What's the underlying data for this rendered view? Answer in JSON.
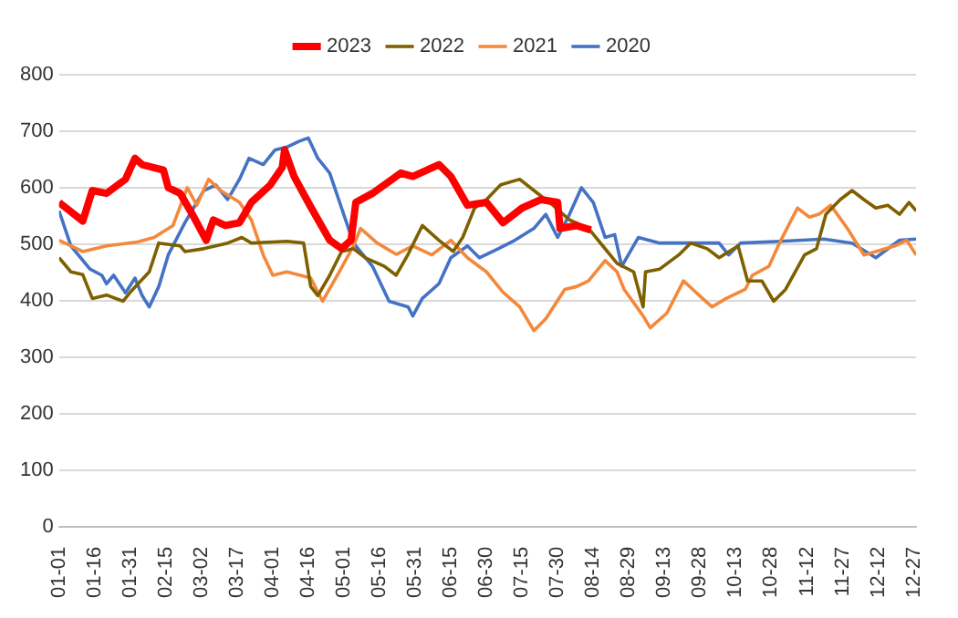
{
  "chart_data": {
    "type": "line",
    "xlim": [
      "--01-01",
      "--12-28"
    ],
    "xticks": [
      {
        "value": "--01-01",
        "label": "01-01"
      },
      {
        "value": "--01-16",
        "label": "01-16"
      },
      {
        "value": "--01-31",
        "label": "01-31"
      },
      {
        "value": "--02-15",
        "label": "02-15"
      },
      {
        "value": "--03-02",
        "label": "03-02"
      },
      {
        "value": "--03-17",
        "label": "03-17"
      },
      {
        "value": "--04-01",
        "label": "04-01"
      },
      {
        "value": "--04-16",
        "label": "04-16"
      },
      {
        "value": "--05-01",
        "label": "05-01"
      },
      {
        "value": "--05-16",
        "label": "05-16"
      },
      {
        "value": "--05-31",
        "label": "05-31"
      },
      {
        "value": "--06-15",
        "label": "06-15"
      },
      {
        "value": "--06-30",
        "label": "06-30"
      },
      {
        "value": "--07-15",
        "label": "07-15"
      },
      {
        "value": "--07-30",
        "label": "07-30"
      },
      {
        "value": "--08-14",
        "label": "08-14"
      },
      {
        "value": "--08-29",
        "label": "08-29"
      },
      {
        "value": "--09-13",
        "label": "09-13"
      },
      {
        "value": "--09-28",
        "label": "09-28"
      },
      {
        "value": "--10-13",
        "label": "10-13"
      },
      {
        "value": "--10-28",
        "label": "10-28"
      },
      {
        "value": "--11-12",
        "label": "11-12"
      },
      {
        "value": "--11-27",
        "label": "11-27"
      },
      {
        "value": "--12-12",
        "label": "12-12"
      },
      {
        "value": "--12-27",
        "label": "12-27"
      }
    ],
    "ylim": [
      0,
      800
    ],
    "yticks": [
      0,
      100,
      200,
      300,
      400,
      500,
      600,
      700,
      800
    ],
    "grid": "y",
    "legend": "top",
    "marker": "none",
    "line_style": "solid",
    "series": [
      {
        "name": "2023",
        "color": "#ff0000",
        "x": [
          "--01-01",
          "--01-11",
          "--01-15",
          "--01-21",
          "--01-29",
          "--02-02",
          "--02-05",
          "--02-14",
          "--02-16",
          "--02-21",
          "--02-26",
          "--03-04",
          "--03-07",
          "--03-12",
          "--03-18",
          "--03-23",
          "--03-31",
          "--04-05",
          "--04-06",
          "--04-10",
          "--04-17",
          "--04-25",
          "--04-30",
          "--05-04",
          "--05-06",
          "--05-13",
          "--05-25",
          "--05-30",
          "--06-10",
          "--06-15",
          "--06-22",
          "--06-30",
          "--07-07",
          "--07-15",
          "--07-23",
          "--07-30",
          "--07-31",
          "--08-07",
          "--08-13"
        ],
        "values": [
          574,
          541,
          595,
          590,
          615,
          652,
          641,
          631,
          600,
          590,
          554,
          507,
          543,
          533,
          538,
          574,
          605,
          636,
          667,
          620,
          566,
          507,
          492,
          507,
          574,
          590,
          626,
          620,
          641,
          620,
          569,
          574,
          538,
          564,
          579,
          574,
          528,
          533,
          525
        ]
      },
      {
        "name": "2022",
        "color": "#7f6000",
        "x": [
          "--01-01",
          "--01-06",
          "--01-11",
          "--01-15",
          "--01-21",
          "--01-28",
          "--01-31",
          "--02-08",
          "--02-12",
          "--02-21",
          "--02-23",
          "--03-03",
          "--03-13",
          "--03-19",
          "--03-23",
          "--04-07",
          "--04-14",
          "--04-17",
          "--04-20",
          "--04-25",
          "--04-30",
          "--05-05",
          "--05-10",
          "--05-18",
          "--05-23",
          "--05-28",
          "--06-03",
          "--06-10",
          "--06-16",
          "--06-20",
          "--06-25",
          "--06-30",
          "--07-06",
          "--07-14",
          "--07-20",
          "--07-28",
          "--08-04",
          "--08-12",
          "--08-18",
          "--08-24",
          "--08-31",
          "--09-04",
          "--09-05",
          "--09-11",
          "--09-19",
          "--09-24",
          "--10-01",
          "--10-06",
          "--10-14",
          "--10-18",
          "--10-24",
          "--10-29",
          "--11-03",
          "--11-11",
          "--11-16",
          "--11-20",
          "--11-26",
          "--12-01",
          "--12-06",
          "--12-11",
          "--12-16",
          "--12-21",
          "--12-25",
          "--12-28"
        ],
        "values": [
          476,
          451,
          446,
          404,
          410,
          399,
          415,
          451,
          502,
          497,
          487,
          492,
          502,
          512,
          502,
          505,
          502,
          425,
          409,
          445,
          487,
          492,
          476,
          461,
          445,
          482,
          533,
          507,
          487,
          512,
          564,
          579,
          605,
          615,
          595,
          569,
          543,
          528,
          497,
          466,
          451,
          389,
          451,
          456,
          481,
          502,
          492,
          476,
          497,
          435,
          435,
          399,
          420,
          481,
          492,
          553,
          579,
          595,
          579,
          564,
          569,
          553,
          574,
          559
        ]
      },
      {
        "name": "2021",
        "color": "#f4883b",
        "x": [
          "--01-01",
          "--01-11",
          "--01-21",
          "--02-03",
          "--02-10",
          "--02-18",
          "--02-24",
          "--02-28",
          "--03-05",
          "--03-10",
          "--03-18",
          "--03-23",
          "--03-28",
          "--04-01",
          "--04-07",
          "--04-17",
          "--04-22",
          "--04-29",
          "--05-05",
          "--05-08",
          "--05-15",
          "--05-23",
          "--05-30",
          "--06-07",
          "--06-15",
          "--06-22",
          "--06-30",
          "--07-07",
          "--07-14",
          "--07-20",
          "--07-25",
          "--08-02",
          "--08-07",
          "--08-12",
          "--08-19",
          "--08-24",
          "--08-27",
          "--09-04",
          "--09-07",
          "--09-14",
          "--09-21",
          "--09-29",
          "--10-03",
          "--10-09",
          "--10-17",
          "--10-20",
          "--10-27",
          "--11-01",
          "--11-08",
          "--11-13",
          "--11-17",
          "--11-22",
          "--11-29",
          "--12-06",
          "--12-11",
          "--12-19",
          "--12-24",
          "--12-28"
        ],
        "values": [
          507,
          487,
          497,
          504,
          512,
          533,
          600,
          569,
          615,
          595,
          574,
          543,
          481,
          445,
          451,
          440,
          399,
          451,
          497,
          528,
          502,
          482,
          497,
          481,
          507,
          476,
          451,
          415,
          389,
          347,
          368,
          420,
          425,
          435,
          471,
          451,
          420,
          373,
          352,
          378,
          435,
          404,
          389,
          404,
          420,
          445,
          461,
          507,
          564,
          548,
          553,
          569,
          528,
          481,
          487,
          497,
          507,
          481
        ]
      },
      {
        "name": "2020",
        "color": "#4472c4",
        "x": [
          "--01-01",
          "--01-06",
          "--01-14",
          "--01-19",
          "--01-21",
          "--01-24",
          "--01-29",
          "--02-02",
          "--02-05",
          "--02-08",
          "--02-12",
          "--02-16",
          "--02-23",
          "--03-03",
          "--03-08",
          "--03-13",
          "--03-18",
          "--03-22",
          "--03-28",
          "--04-02",
          "--04-07",
          "--04-12",
          "--04-16",
          "--04-20",
          "--04-25",
          "--04-30",
          "--05-05",
          "--05-13",
          "--05-20",
          "--05-28",
          "--05-30",
          "--06-03",
          "--06-10",
          "--06-15",
          "--06-22",
          "--06-27",
          "--07-05",
          "--07-12",
          "--07-20",
          "--07-25",
          "--07-30",
          "--08-04",
          "--08-09",
          "--08-14",
          "--08-19",
          "--08-23",
          "--08-26",
          "--09-02",
          "--09-11",
          "--09-24",
          "--10-06",
          "--10-10",
          "--10-15",
          "--11-01",
          "--11-19",
          "--12-01",
          "--12-11",
          "--12-21",
          "--12-28"
        ],
        "values": [
          559,
          497,
          456,
          445,
          430,
          445,
          414,
          440,
          409,
          389,
          425,
          481,
          538,
          595,
          605,
          579,
          615,
          652,
          641,
          667,
          672,
          682,
          688,
          652,
          626,
          564,
          502,
          461,
          399,
          389,
          373,
          404,
          430,
          476,
          497,
          476,
          492,
          507,
          528,
          553,
          512,
          553,
          600,
          574,
          512,
          517,
          461,
          512,
          502,
          502,
          502,
          481,
          502,
          505,
          509,
          502,
          476,
          507,
          509
        ]
      }
    ]
  }
}
